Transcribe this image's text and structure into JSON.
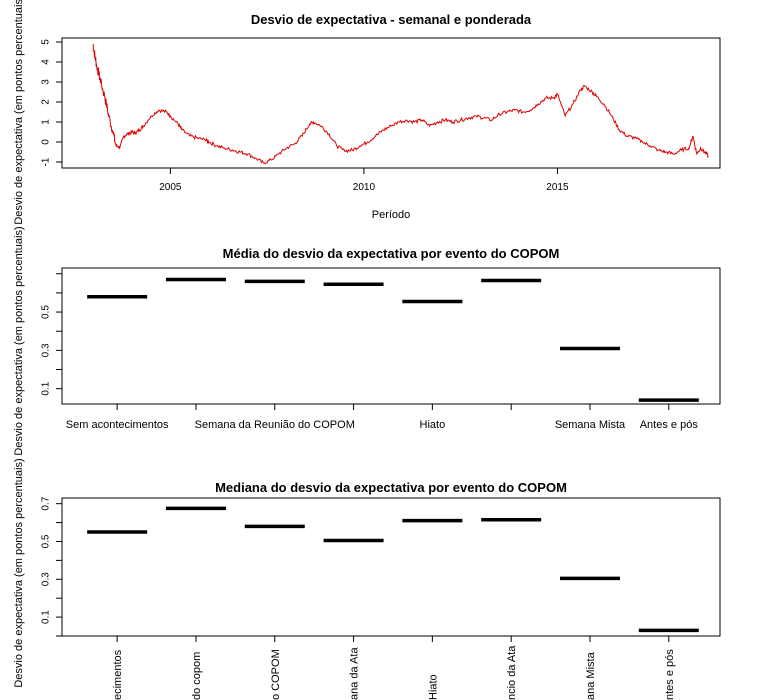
{
  "chart_data": [
    {
      "type": "line",
      "title": "Desvio de expectativa - semanal e ponderada",
      "xlabel": "Período",
      "ylabel": "Desvio de expectativa (em pontos percentuais)",
      "xlim": [
        2002.2,
        2019.2
      ],
      "ylim": [
        -1.3,
        5.2
      ],
      "xticks": [
        "2005",
        "2010",
        "2015"
      ],
      "yticks": [
        "-1",
        "0",
        "1",
        "2",
        "3",
        "4",
        "5"
      ],
      "color": "#e00000",
      "series": [
        {
          "x": [
            2003.0,
            2003.05,
            2003.1,
            2003.15,
            2003.2,
            2003.3,
            2003.4,
            2003.5,
            2003.6,
            2003.7,
            2003.8,
            2003.9,
            2004.0,
            2004.1,
            2004.2,
            2004.3,
            2004.5,
            2004.7,
            2004.9,
            2005.0,
            2005.2,
            2005.3,
            2005.5,
            2005.7,
            2005.9,
            2006.0,
            2006.2,
            2006.4,
            2006.6,
            2006.8,
            2007.0,
            2007.2,
            2007.4,
            2007.6,
            2007.8,
            2008.0,
            2008.2,
            2008.4,
            2008.6,
            2008.7,
            2008.9,
            2009.1,
            2009.3,
            2009.5,
            2009.7,
            2009.9,
            2010.1,
            2010.3,
            2010.5,
            2010.7,
            2010.9,
            2011.1,
            2011.3,
            2011.5,
            2011.7,
            2011.9,
            2012.1,
            2012.3,
            2012.5,
            2012.7,
            2012.9,
            2013.1,
            2013.3,
            2013.5,
            2013.7,
            2013.9,
            2014.1,
            2014.3,
            2014.5,
            2014.7,
            2014.9,
            2015.0,
            2015.2,
            2015.4,
            2015.6,
            2015.7,
            2015.9,
            2016.0,
            2016.2,
            2016.4,
            2016.6,
            2016.8,
            2017.0,
            2017.2,
            2017.4,
            2017.6,
            2017.8,
            2018.0,
            2018.2,
            2018.4,
            2018.5,
            2018.6,
            2018.7,
            2018.8,
            2018.9
          ],
          "y": [
            4.9,
            4.3,
            3.8,
            3.4,
            3.0,
            2.3,
            1.4,
            0.6,
            -0.2,
            -0.25,
            0.3,
            0.4,
            0.5,
            0.45,
            0.6,
            0.8,
            1.3,
            1.6,
            1.5,
            1.3,
            0.9,
            0.6,
            0.3,
            0.2,
            0.1,
            0.0,
            -0.2,
            -0.3,
            -0.4,
            -0.5,
            -0.6,
            -0.8,
            -1.05,
            -0.9,
            -0.6,
            -0.3,
            -0.1,
            0.3,
            0.9,
            1.0,
            0.8,
            0.4,
            -0.2,
            -0.45,
            -0.4,
            -0.2,
            0.0,
            0.3,
            0.6,
            0.8,
            1.0,
            1.1,
            1.0,
            1.1,
            0.8,
            1.0,
            1.1,
            1.0,
            1.1,
            1.2,
            1.3,
            1.2,
            1.1,
            1.4,
            1.5,
            1.6,
            1.5,
            1.6,
            1.9,
            2.2,
            2.2,
            2.4,
            1.3,
            1.9,
            2.6,
            2.8,
            2.5,
            2.3,
            1.9,
            1.3,
            0.6,
            0.3,
            0.2,
            0.0,
            -0.2,
            -0.4,
            -0.5,
            -0.6,
            -0.4,
            -0.3,
            0.3,
            -0.6,
            -0.3,
            -0.5,
            -0.7
          ]
        }
      ]
    },
    {
      "type": "scatter",
      "title": "Média do desvio da expectativa por evento do COPOM",
      "ylabel": "Desvio de expectativa (em pontos percentuais)",
      "ylim": [
        0.02,
        0.73
      ],
      "yticks": [
        "0.1",
        "0.3",
        "0.5"
      ],
      "categories": [
        "Sem acontecimentos",
        "Semana da Reunião do copom",
        "Semana da Reunião do COPOM",
        "Semana da Ata",
        "Hiato",
        "Anúncio da Ata",
        "Semana Mista",
        "Antes e pós"
      ],
      "visible_tick_labels": [
        "Sem acontecimentos",
        "",
        "Semana da Reunião do COPOM",
        "",
        "Hiato",
        "",
        "Semana Mista",
        "Antes e pós"
      ],
      "values": [
        0.58,
        0.67,
        0.66,
        0.645,
        0.555,
        0.665,
        0.31,
        0.04
      ]
    },
    {
      "type": "scatter",
      "title": "Mediana do desvio da expectativa por evento do COPOM",
      "ylabel": "Desvio de expectativa (em pontos percentuais)",
      "ylim": [
        0.0,
        0.73
      ],
      "yticks": [
        "0.1",
        "0.3",
        "0.5",
        "0.7"
      ],
      "categories": [
        "Sem acontecimentos",
        "Semana da Reunião do copom",
        "Semana da Reunião do COPOM",
        "Semana da Ata",
        "Hiato",
        "Anúncio da Ata",
        "Semana Mista",
        "Antes e pós"
      ],
      "visible_tick_labels": [
        "ecimentos",
        "do copom",
        "o COPOM",
        "ana da Ata",
        "Hiato",
        "ncio da Ata",
        "ana Mista",
        "ntes e pós"
      ],
      "values": [
        0.55,
        0.675,
        0.58,
        0.505,
        0.61,
        0.615,
        0.305,
        0.03
      ]
    }
  ]
}
